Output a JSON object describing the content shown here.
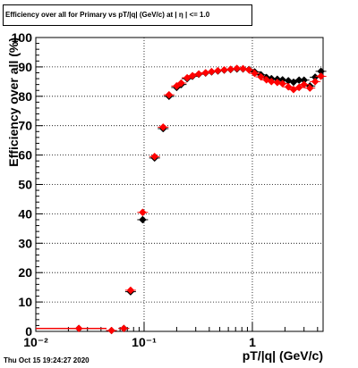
{
  "title": "Efficiency over all for Primary vs pT/|q| (GeV/c) at | η | <= 1.0",
  "timestamp": "Thu Oct 15 19:24:27 2020",
  "chart_data": {
    "type": "scatter",
    "title": "Efficiency over all for Primary vs pT/|q| (GeV/c) at | η | <= 1.0",
    "xlabel": "pT/|q| (GeV/c)",
    "ylabel": "Efficiency over all (%)",
    "xscale": "log",
    "xlim": [
      0.01,
      4.5
    ],
    "ylim": [
      0,
      100
    ],
    "grid": true,
    "x_tick_labels": [
      "10⁻²",
      "10⁻¹",
      "1"
    ],
    "y_tick_labels": [
      "0",
      "10",
      "20",
      "30",
      "40",
      "50",
      "60",
      "70",
      "80",
      "90",
      "100"
    ],
    "colors": {
      "series_a": "#000000",
      "series_b": "#ff0000"
    },
    "series": [
      {
        "color": "#000000",
        "points": [
          {
            "x": 0.025,
            "y": 1,
            "xlo": 0.01,
            "xhi": 0.045
          },
          {
            "x": 0.05,
            "y": 0.3
          },
          {
            "x": 0.065,
            "y": 1
          },
          {
            "x": 0.075,
            "y": 13.5
          },
          {
            "x": 0.097,
            "y": 38
          },
          {
            "x": 0.125,
            "y": 59
          },
          {
            "x": 0.15,
            "y": 69
          },
          {
            "x": 0.17,
            "y": 80
          },
          {
            "x": 0.2,
            "y": 83
          },
          {
            "x": 0.22,
            "y": 84
          },
          {
            "x": 0.25,
            "y": 86
          },
          {
            "x": 0.28,
            "y": 86.8
          },
          {
            "x": 0.32,
            "y": 87.5
          },
          {
            "x": 0.37,
            "y": 87.9
          },
          {
            "x": 0.42,
            "y": 88.3
          },
          {
            "x": 0.48,
            "y": 88.6
          },
          {
            "x": 0.55,
            "y": 88.9
          },
          {
            "x": 0.63,
            "y": 89.1
          },
          {
            "x": 0.72,
            "y": 89.3
          },
          {
            "x": 0.82,
            "y": 89.3
          },
          {
            "x": 0.93,
            "y": 89.1
          },
          {
            "x": 1.05,
            "y": 88.3
          },
          {
            "x": 1.2,
            "y": 87.3
          },
          {
            "x": 1.35,
            "y": 86.4
          },
          {
            "x": 1.5,
            "y": 86.0
          },
          {
            "x": 1.7,
            "y": 85.8
          },
          {
            "x": 1.9,
            "y": 85.6
          },
          {
            "x": 2.15,
            "y": 85.3
          },
          {
            "x": 2.4,
            "y": 84.8
          },
          {
            "x": 2.7,
            "y": 85.5
          },
          {
            "x": 3.0,
            "y": 85.5
          },
          {
            "x": 3.4,
            "y": 83.5
          },
          {
            "x": 3.8,
            "y": 86.5
          },
          {
            "x": 4.3,
            "y": 88.5
          }
        ]
      },
      {
        "color": "#ff0000",
        "points": [
          {
            "x": 0.025,
            "y": 1,
            "xlo": 0.01,
            "xhi": 0.045
          },
          {
            "x": 0.05,
            "y": 0.3
          },
          {
            "x": 0.065,
            "y": 1
          },
          {
            "x": 0.075,
            "y": 14
          },
          {
            "x": 0.097,
            "y": 40.5
          },
          {
            "x": 0.125,
            "y": 59.5
          },
          {
            "x": 0.15,
            "y": 69.5
          },
          {
            "x": 0.17,
            "y": 80.5
          },
          {
            "x": 0.2,
            "y": 83.5
          },
          {
            "x": 0.22,
            "y": 84.5
          },
          {
            "x": 0.25,
            "y": 86.3
          },
          {
            "x": 0.28,
            "y": 87.0
          },
          {
            "x": 0.32,
            "y": 87.6
          },
          {
            "x": 0.37,
            "y": 88.0
          },
          {
            "x": 0.42,
            "y": 88.4
          },
          {
            "x": 0.48,
            "y": 88.7
          },
          {
            "x": 0.55,
            "y": 89.0
          },
          {
            "x": 0.63,
            "y": 89.2
          },
          {
            "x": 0.72,
            "y": 89.5
          },
          {
            "x": 0.82,
            "y": 89.4
          },
          {
            "x": 0.93,
            "y": 89.0
          },
          {
            "x": 1.05,
            "y": 87.8
          },
          {
            "x": 1.2,
            "y": 86.6
          },
          {
            "x": 1.35,
            "y": 85.6
          },
          {
            "x": 1.5,
            "y": 85.0
          },
          {
            "x": 1.7,
            "y": 84.7
          },
          {
            "x": 1.9,
            "y": 84.3
          },
          {
            "x": 2.15,
            "y": 83.2
          },
          {
            "x": 2.4,
            "y": 82.3
          },
          {
            "x": 2.7,
            "y": 83.0
          },
          {
            "x": 3.0,
            "y": 84.0
          },
          {
            "x": 3.4,
            "y": 82.8
          },
          {
            "x": 3.8,
            "y": 85.0
          },
          {
            "x": 4.3,
            "y": 86.8
          }
        ]
      }
    ]
  }
}
